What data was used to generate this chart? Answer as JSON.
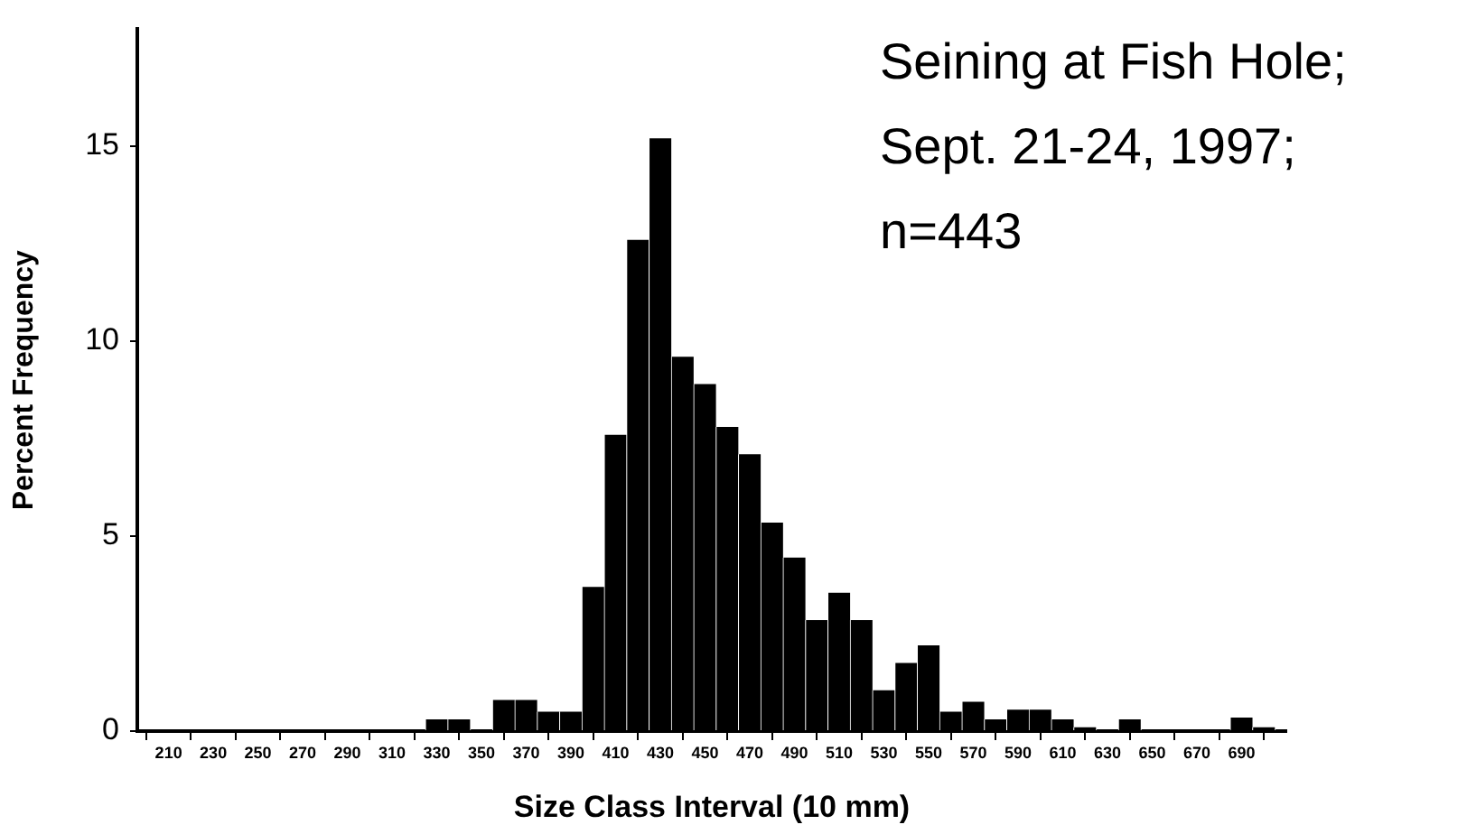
{
  "chart_data": {
    "type": "histogram",
    "annotations": [
      "Seining at Fish Hole;",
      "Sept. 21-24, 1997;",
      "n=443"
    ],
    "xlabel": "Size Class Interval (10 mm)",
    "ylabel": "Percent Frequency",
    "bins": [
      205,
      215,
      225,
      235,
      245,
      255,
      265,
      275,
      285,
      295,
      305,
      315,
      325,
      335,
      345,
      355,
      365,
      375,
      385,
      395,
      405,
      415,
      425,
      435,
      445,
      455,
      465,
      475,
      485,
      495,
      505,
      515,
      525,
      535,
      545,
      555,
      565,
      575,
      585,
      595,
      605,
      615,
      625,
      635,
      645,
      655,
      665,
      675,
      685,
      695,
      705
    ],
    "values": [
      0,
      0,
      0,
      0,
      0,
      0,
      0,
      0,
      0,
      0,
      0,
      0,
      0.3,
      0.3,
      0,
      0.8,
      0.8,
      0.5,
      0.5,
      3.7,
      7.6,
      12.6,
      15.2,
      9.6,
      8.9,
      7.8,
      7.1,
      5.35,
      4.45,
      2.85,
      3.55,
      2.85,
      1.05,
      1.75,
      2.2,
      0.5,
      0.75,
      0.3,
      0.55,
      0.55,
      0.3,
      0.1,
      0,
      0.3,
      0,
      0,
      0,
      0,
      0.35,
      0.1
    ],
    "color": "#000000",
    "xlim": [
      196,
      710
    ],
    "xticks": [
      210,
      230,
      250,
      270,
      290,
      310,
      330,
      350,
      370,
      390,
      410,
      430,
      450,
      470,
      490,
      510,
      530,
      550,
      570,
      590,
      610,
      630,
      650,
      670,
      690
    ],
    "ylim": [
      0,
      18
    ],
    "yticks": [
      0,
      5,
      10,
      15
    ],
    "grid": false,
    "legend": false
  }
}
